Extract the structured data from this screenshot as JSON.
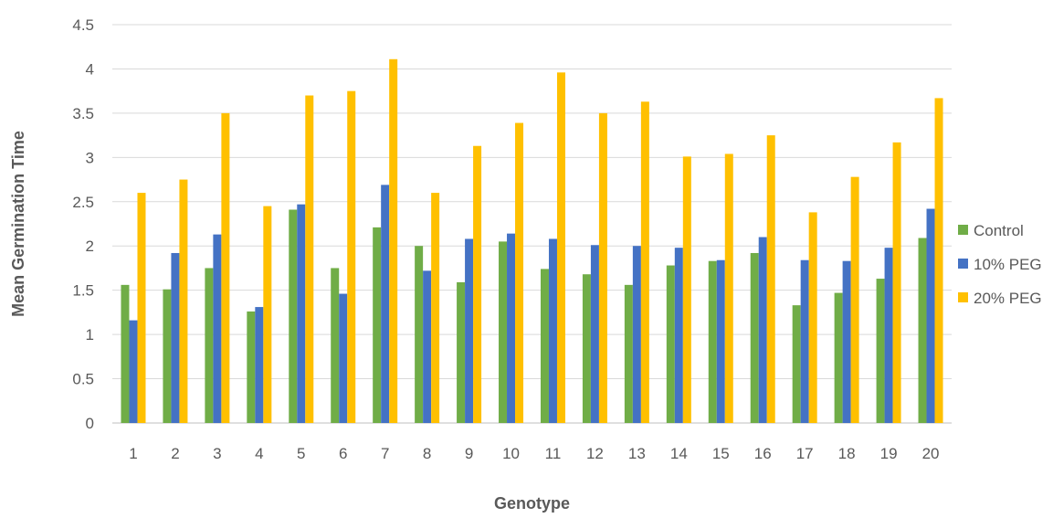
{
  "chart_data": {
    "type": "bar",
    "title": "",
    "xlabel": "Genotype",
    "ylabel": "Mean Germination Time",
    "ylim": [
      0,
      4.5
    ],
    "yticks": [
      "0",
      "0.5",
      "1",
      "1.5",
      "2",
      "2.5",
      "3",
      "3.5",
      "4",
      "4.5"
    ],
    "grid": true,
    "legend_position": "right",
    "categories": [
      "1",
      "2",
      "3",
      "4",
      "5",
      "6",
      "7",
      "8",
      "9",
      "10",
      "11",
      "12",
      "13",
      "14",
      "15",
      "16",
      "17",
      "18",
      "19",
      "20"
    ],
    "series": [
      {
        "name": "Control",
        "color": "#70ad47",
        "values": [
          1.56,
          1.51,
          1.75,
          1.26,
          2.41,
          1.75,
          2.21,
          2.0,
          1.59,
          2.05,
          1.74,
          1.68,
          1.56,
          1.78,
          1.83,
          1.92,
          1.33,
          1.47,
          1.63,
          2.09
        ]
      },
      {
        "name": "10% PEG",
        "color": "#4472c4",
        "values": [
          1.16,
          1.92,
          2.13,
          1.31,
          2.47,
          1.46,
          2.69,
          1.72,
          2.08,
          2.14,
          2.08,
          2.01,
          2.0,
          1.98,
          1.84,
          2.1,
          1.84,
          1.83,
          1.98,
          2.42
        ]
      },
      {
        "name": "20% PEG",
        "color": "#ffc000",
        "values": [
          2.6,
          2.75,
          3.5,
          2.45,
          3.7,
          3.75,
          4.11,
          2.6,
          3.13,
          3.39,
          3.96,
          3.5,
          3.63,
          3.01,
          3.04,
          3.25,
          2.38,
          2.78,
          3.17,
          3.67
        ]
      }
    ]
  }
}
